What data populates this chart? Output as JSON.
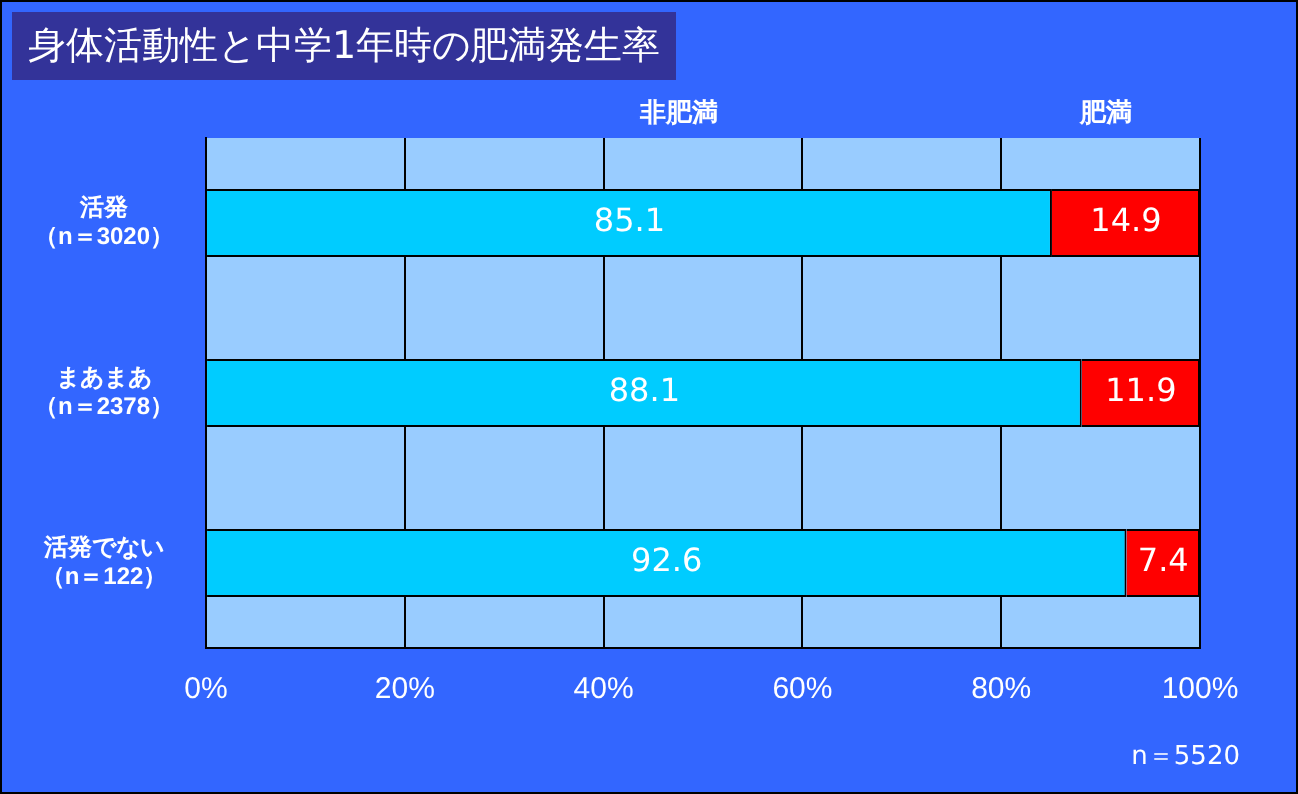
{
  "chart_data": {
    "type": "bar",
    "orientation": "horizontal",
    "stacked": true,
    "title": "身体活動性と中学1年時の肥満発生率",
    "categories": [
      "活発（n＝3020）",
      "まあまあ（n＝2378）",
      "活発でない（n＝122）"
    ],
    "series": [
      {
        "name": "非肥満",
        "color": "#00ccff",
        "values": [
          85.1,
          88.1,
          92.6
        ]
      },
      {
        "name": "肥満",
        "color": "#ff0000",
        "values": [
          14.9,
          11.9,
          7.4
        ]
      }
    ],
    "xlim": [
      0,
      100
    ],
    "xticks": [
      {
        "value": 0,
        "label": "0%"
      },
      {
        "value": 20,
        "label": "20%"
      },
      {
        "value": 40,
        "label": "40%"
      },
      {
        "value": 60,
        "label": "60%"
      },
      {
        "value": 80,
        "label": "80%"
      },
      {
        "value": 100,
        "label": "100%"
      }
    ],
    "grid": "x",
    "data_labels": true,
    "annotations": [
      "n＝5520"
    ]
  }
}
